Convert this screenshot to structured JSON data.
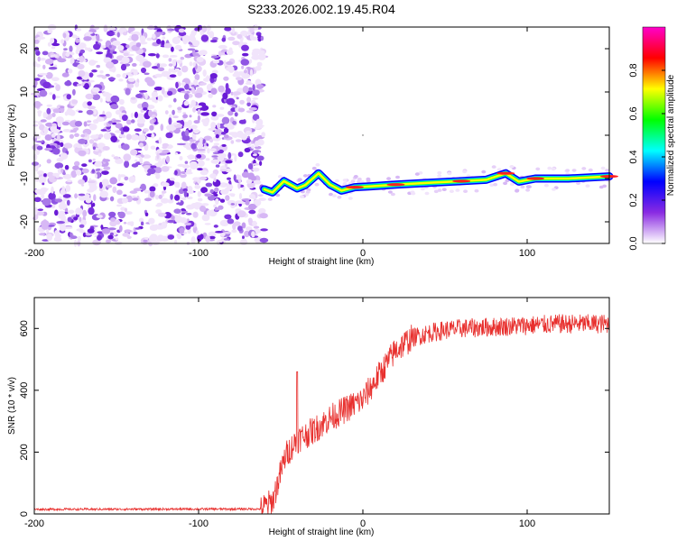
{
  "title": "S233.2026.002.19.45.R04",
  "charts": [
    {
      "type": "heatmap",
      "name": "spectrogram",
      "xlabel": "Height of straight line (km)",
      "ylabel": "Frequency (Hz)",
      "xlim": [
        -200,
        150
      ],
      "ylim": [
        -25,
        25
      ],
      "xticks": [
        "-200",
        "-100",
        "0",
        "100"
      ],
      "yticks": [
        "20",
        "10",
        "0",
        "-10",
        "-20"
      ],
      "noise_region_x": [
        -200,
        -60
      ],
      "signal_track": [
        {
          "x": -60,
          "y": -12.5
        },
        {
          "x": -55,
          "y": -13.2
        },
        {
          "x": -48,
          "y": -10.6
        },
        {
          "x": -40,
          "y": -12.3
        },
        {
          "x": -35,
          "y": -11.5
        },
        {
          "x": -27,
          "y": -8.8
        },
        {
          "x": -20,
          "y": -11.4
        },
        {
          "x": -13,
          "y": -12.8
        },
        {
          "x": -5,
          "y": -12.0
        },
        {
          "x": 5,
          "y": -11.8
        },
        {
          "x": 20,
          "y": -11.4
        },
        {
          "x": 40,
          "y": -11.0
        },
        {
          "x": 60,
          "y": -10.6
        },
        {
          "x": 75,
          "y": -10.3
        },
        {
          "x": 87,
          "y": -8.8
        },
        {
          "x": 95,
          "y": -10.7
        },
        {
          "x": 105,
          "y": -10.0
        },
        {
          "x": 125,
          "y": -10.0
        },
        {
          "x": 150,
          "y": -9.5
        }
      ],
      "colorbar": {
        "label": "Normalized spectral amplitude",
        "ticks": [
          "0.0",
          "0.2",
          "0.4",
          "0.6",
          "0.8"
        ],
        "range": [
          0,
          1
        ],
        "colors": [
          "#ffffff",
          "#8a2be2",
          "#0000ff",
          "#00ffff",
          "#00ff00",
          "#ffff00",
          "#ff0000",
          "#ff00cc"
        ]
      }
    },
    {
      "type": "line",
      "name": "snr",
      "xlabel": "Height of straight line (km)",
      "ylabel": "SNR (10 * v/v)",
      "xlim": [
        -200,
        150
      ],
      "ylim": [
        0,
        700
      ],
      "xticks": [
        "-200",
        "-100",
        "0",
        "100"
      ],
      "yticks": [
        "600",
        "400",
        "200",
        "0"
      ],
      "color": "#e8302e",
      "series": [
        {
          "name": "SNR",
          "x": [
            -200,
            -62,
            -55,
            -47,
            -40,
            -30,
            -20,
            -10,
            0,
            10,
            20,
            30,
            40,
            50,
            60,
            80,
            100,
            120,
            150
          ],
          "y": [
            15,
            16,
            40,
            190,
            240,
            270,
            310,
            340,
            370,
            450,
            530,
            570,
            585,
            595,
            600,
            605,
            610,
            615,
            615
          ]
        }
      ],
      "spike": {
        "x": -40,
        "y": 460
      }
    }
  ]
}
